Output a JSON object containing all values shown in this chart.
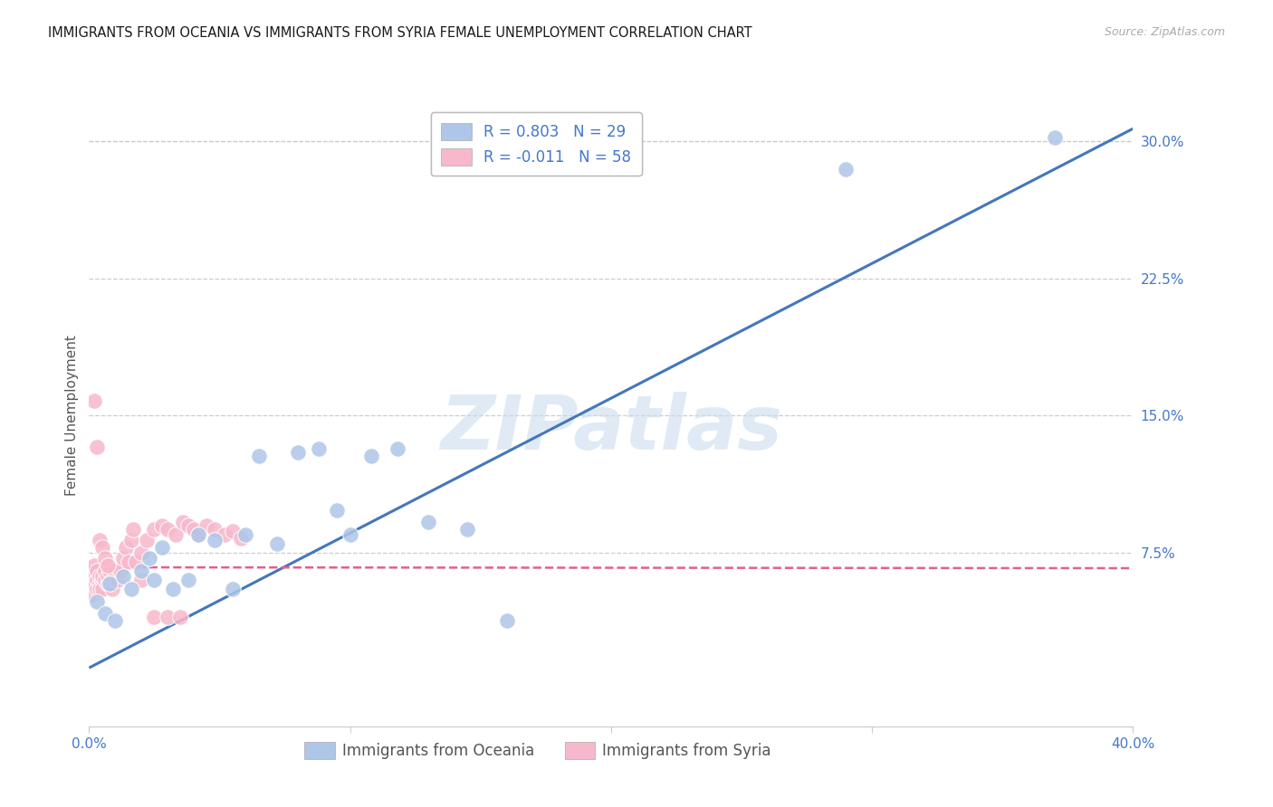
{
  "title": "IMMIGRANTS FROM OCEANIA VS IMMIGRANTS FROM SYRIA FEMALE UNEMPLOYMENT CORRELATION CHART",
  "source": "Source: ZipAtlas.com",
  "ylabel": "Female Unemployment",
  "watermark": "ZIPatlas",
  "xlim": [
    0.0,
    0.4
  ],
  "ylim": [
    -0.02,
    0.32
  ],
  "ytick_vals": [
    0.075,
    0.15,
    0.225,
    0.3
  ],
  "ytick_labels": [
    "7.5%",
    "15.0%",
    "22.5%",
    "30.0%"
  ],
  "xtick_vals": [
    0.0,
    0.1,
    0.2,
    0.3,
    0.4
  ],
  "xtick_labels": [
    "0.0%",
    "",
    "",
    "",
    "40.0%"
  ],
  "oceania_R": 0.803,
  "oceania_N": 29,
  "syria_R": -0.011,
  "syria_N": 58,
  "oceania_color": "#aec6e8",
  "oceania_line_color": "#4477bb",
  "syria_color": "#f7b8cb",
  "syria_line_color": "#e06090",
  "oceania_line_x0": 0.0,
  "oceania_line_y0": 0.012,
  "oceania_line_x1": 0.4,
  "oceania_line_y1": 0.307,
  "syria_line_x0": 0.0,
  "syria_line_y0": 0.067,
  "syria_line_x1": 0.4,
  "syria_line_y1": 0.0665,
  "oceania_x": [
    0.003,
    0.006,
    0.008,
    0.01,
    0.013,
    0.016,
    0.02,
    0.023,
    0.025,
    0.028,
    0.032,
    0.038,
    0.042,
    0.048,
    0.055,
    0.06,
    0.065,
    0.072,
    0.08,
    0.088,
    0.095,
    0.1,
    0.108,
    0.118,
    0.13,
    0.145,
    0.16,
    0.29,
    0.37
  ],
  "oceania_y": [
    0.048,
    0.042,
    0.058,
    0.038,
    0.062,
    0.055,
    0.065,
    0.072,
    0.06,
    0.078,
    0.055,
    0.06,
    0.085,
    0.082,
    0.055,
    0.085,
    0.128,
    0.08,
    0.13,
    0.132,
    0.098,
    0.085,
    0.128,
    0.132,
    0.092,
    0.088,
    0.038,
    0.285,
    0.302
  ],
  "syria_x": [
    0.001,
    0.001,
    0.001,
    0.002,
    0.002,
    0.002,
    0.003,
    0.003,
    0.003,
    0.004,
    0.004,
    0.004,
    0.005,
    0.005,
    0.005,
    0.006,
    0.006,
    0.007,
    0.007,
    0.008,
    0.008,
    0.009,
    0.009,
    0.01,
    0.01,
    0.011,
    0.012,
    0.013,
    0.014,
    0.015,
    0.016,
    0.017,
    0.018,
    0.02,
    0.022,
    0.025,
    0.028,
    0.03,
    0.033,
    0.036,
    0.038,
    0.04,
    0.042,
    0.045,
    0.048,
    0.052,
    0.055,
    0.058,
    0.002,
    0.003,
    0.004,
    0.005,
    0.006,
    0.007,
    0.02,
    0.025,
    0.03,
    0.035
  ],
  "syria_y": [
    0.062,
    0.058,
    0.052,
    0.062,
    0.058,
    0.068,
    0.06,
    0.055,
    0.065,
    0.058,
    0.062,
    0.055,
    0.06,
    0.055,
    0.062,
    0.06,
    0.065,
    0.058,
    0.062,
    0.058,
    0.065,
    0.06,
    0.055,
    0.06,
    0.065,
    0.06,
    0.065,
    0.072,
    0.078,
    0.07,
    0.082,
    0.088,
    0.07,
    0.075,
    0.082,
    0.088,
    0.09,
    0.088,
    0.085,
    0.092,
    0.09,
    0.088,
    0.085,
    0.09,
    0.088,
    0.085,
    0.087,
    0.083,
    0.158,
    0.133,
    0.082,
    0.078,
    0.072,
    0.068,
    0.06,
    0.04,
    0.04,
    0.04
  ],
  "grid_color": "#cccccc",
  "background_color": "#ffffff",
  "title_fontsize": 10.5,
  "tick_color": "#4477cc",
  "tick_fontsize": 11,
  "legend_fontsize": 12,
  "marker_size": 160
}
